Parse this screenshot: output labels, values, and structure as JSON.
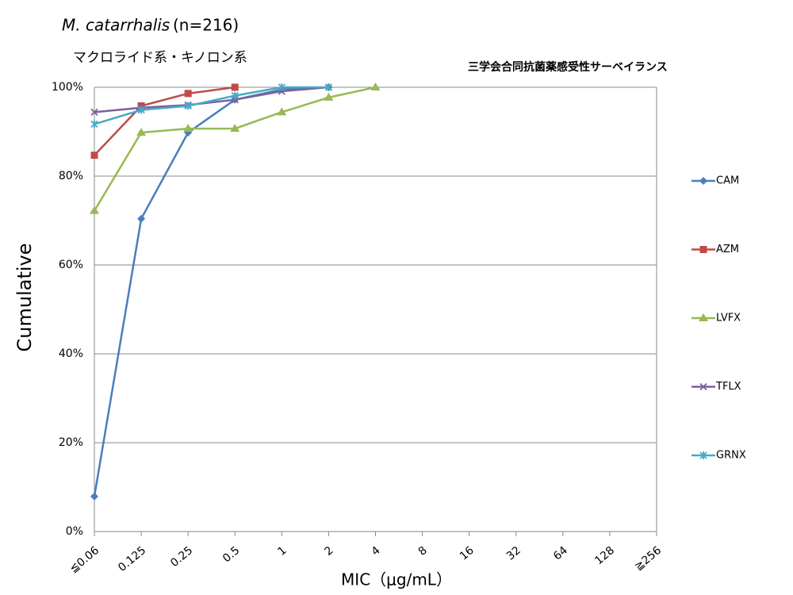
{
  "chart_data": {
    "type": "line",
    "title": "M. catarrhalis",
    "title_note": "(n=216)",
    "subtitle": "マクロライド系・キノロン系",
    "annotation": "三学会合同抗菌薬感受性サーベイランス",
    "x_label": "MIC（μg/mL）",
    "y_label": "Cumulative",
    "categories": [
      "≦0.06",
      "0.125",
      "0.25",
      "0.5",
      "1",
      "2",
      "4",
      "8",
      "16",
      "32",
      "64",
      "128",
      "≧256"
    ],
    "ylim": [
      0,
      100
    ],
    "yticks": [
      {
        "value": 0,
        "label": "0%"
      },
      {
        "value": 20,
        "label": "20%"
      },
      {
        "value": 40,
        "label": "40%"
      },
      {
        "value": 60,
        "label": "60%"
      },
      {
        "value": 80,
        "label": "80%"
      },
      {
        "value": 100,
        "label": "100%"
      }
    ],
    "grid": true,
    "legend": "right",
    "series": [
      {
        "name": "CAM",
        "color": "#4a7ebb",
        "marker": "diamond",
        "values": [
          7.9,
          70.4,
          89.8,
          97.2,
          99.5,
          100,
          null,
          null,
          null,
          null,
          null,
          null,
          null
        ]
      },
      {
        "name": "AZM",
        "color": "#be4b48",
        "marker": "square",
        "values": [
          84.7,
          95.8,
          98.6,
          100,
          null,
          null,
          null,
          null,
          null,
          null,
          null,
          null,
          null
        ]
      },
      {
        "name": "LVFX",
        "color": "#98b954",
        "marker": "triangle",
        "values": [
          72.2,
          89.8,
          90.7,
          90.7,
          94.4,
          97.7,
          100,
          null,
          null,
          null,
          null,
          null,
          null
        ]
      },
      {
        "name": "TFLX",
        "color": "#7d5fa0",
        "marker": "cross",
        "values": [
          94.4,
          95.4,
          96.0,
          97.2,
          99.1,
          100,
          null,
          null,
          null,
          null,
          null,
          null,
          null
        ]
      },
      {
        "name": "GRNX",
        "color": "#46aac5",
        "marker": "star",
        "values": [
          91.7,
          94.9,
          95.8,
          98.1,
          100,
          100,
          null,
          null,
          null,
          null,
          null,
          null,
          null
        ]
      }
    ]
  }
}
